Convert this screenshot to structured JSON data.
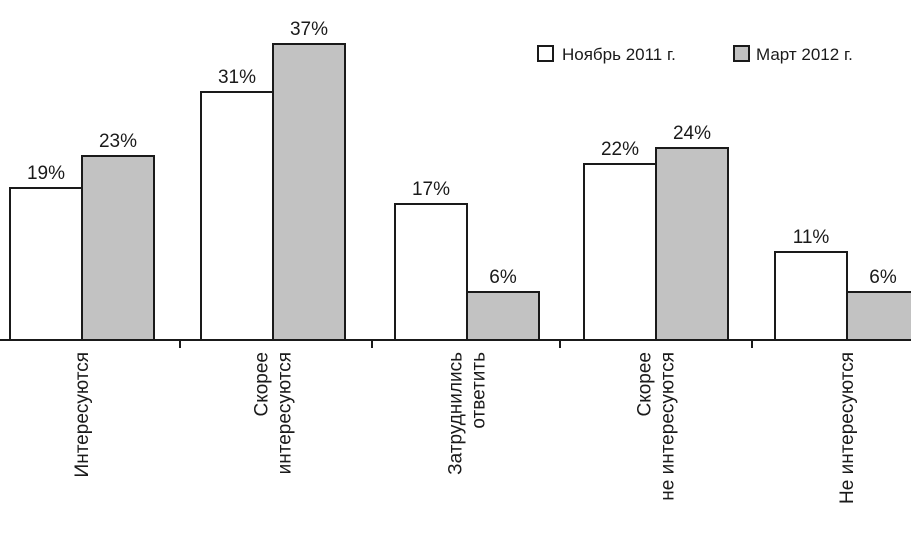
{
  "chart_data": {
    "type": "bar",
    "categories": [
      [
        "Интересуются"
      ],
      [
        "Скорее",
        "интересуются"
      ],
      [
        "Затруднились",
        "ответить"
      ],
      [
        "Скорее",
        "не интересуются"
      ],
      [
        "Не интересуются"
      ]
    ],
    "series": [
      {
        "name": "Ноябрь 2011 г.",
        "values": [
          19,
          31,
          17,
          22,
          11
        ],
        "labels": [
          "19%",
          "31%",
          "17%",
          "22%",
          "11%"
        ],
        "color": "#ffffff"
      },
      {
        "name": "Март 2012 г.",
        "values": [
          23,
          37,
          6,
          24,
          6
        ],
        "labels": [
          "23%",
          "37%",
          "6%",
          "24%",
          "6%"
        ],
        "color": "#c2c2c2"
      }
    ],
    "ylim": [
      0,
      37
    ],
    "grid": false,
    "legend_position": "top-right"
  }
}
